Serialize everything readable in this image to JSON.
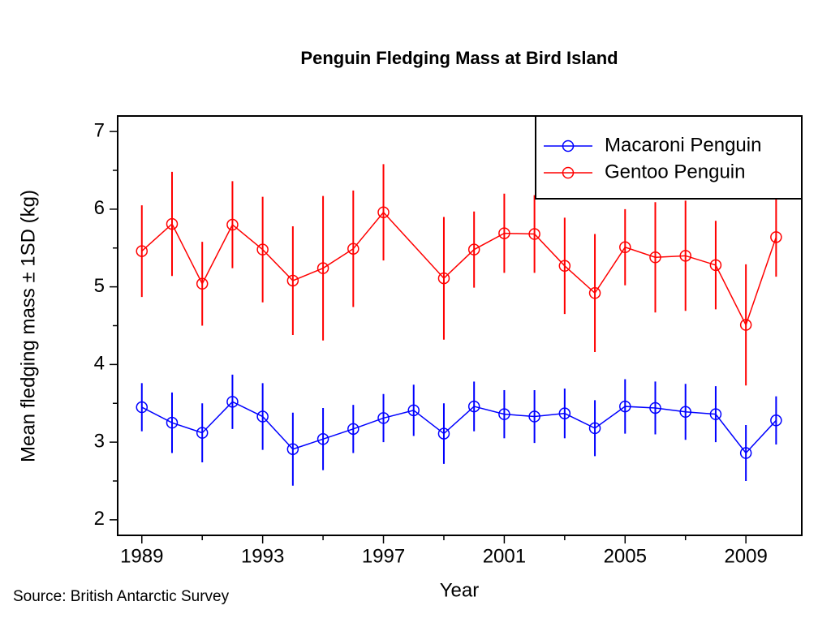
{
  "chart_data": {
    "type": "errorbar-line",
    "title": "Penguin Fledging Mass at Bird Island",
    "x_label": "Year",
    "y_label": "Mean fledging mass ± 1SD (kg)",
    "source": "Source: British Antarctic Survey",
    "xlim": [
      1988.2,
      2010.85
    ],
    "ylim": [
      1.8,
      7.2
    ],
    "xticks": [
      1989,
      1993,
      1997,
      2001,
      2005,
      2009
    ],
    "xminor": [
      1991,
      1995,
      1999,
      2003,
      2007
    ],
    "yticks": [
      2,
      3,
      4,
      5,
      6,
      7
    ],
    "yminor": [
      2.5,
      3.5,
      4.5,
      5.5,
      6.5
    ],
    "legend": "top-right",
    "series": [
      {
        "name": "Macaroni Penguin",
        "color": "#0000ff",
        "x": [
          1989,
          1990,
          1991,
          1992,
          1993,
          1994,
          1995,
          1996,
          1997,
          1998,
          1999,
          2000,
          2001,
          2002,
          2003,
          2004,
          2005,
          2006,
          2007,
          2008,
          2009,
          2010
        ],
        "values": [
          3.45,
          3.25,
          3.12,
          3.52,
          3.33,
          2.91,
          3.04,
          3.17,
          3.31,
          3.41,
          3.11,
          3.46,
          3.36,
          3.33,
          3.37,
          3.18,
          3.46,
          3.44,
          3.39,
          3.36,
          2.86,
          3.28
        ],
        "errors": [
          0.31,
          0.39,
          0.38,
          0.35,
          0.43,
          0.47,
          0.4,
          0.31,
          0.31,
          0.33,
          0.39,
          0.32,
          0.31,
          0.34,
          0.32,
          0.36,
          0.35,
          0.34,
          0.36,
          0.36,
          0.36,
          0.31
        ]
      },
      {
        "name": "Gentoo Penguin",
        "color": "#ff0000",
        "x": [
          1989,
          1990,
          1991,
          1992,
          1993,
          1994,
          1995,
          1996,
          1997,
          1999,
          2000,
          2001,
          2002,
          2003,
          2004,
          2005,
          2006,
          2007,
          2008,
          2009,
          2010
        ],
        "values": [
          5.46,
          5.81,
          5.04,
          5.8,
          5.48,
          5.08,
          5.24,
          5.49,
          5.96,
          5.11,
          5.48,
          5.69,
          5.68,
          5.27,
          4.92,
          5.51,
          5.38,
          5.4,
          5.28,
          4.51,
          5.64
        ],
        "errors": [
          0.59,
          0.67,
          0.54,
          0.56,
          0.68,
          0.7,
          0.93,
          0.75,
          0.62,
          0.79,
          0.49,
          0.51,
          0.5,
          0.62,
          0.76,
          0.49,
          0.71,
          0.71,
          0.57,
          0.78,
          0.51
        ]
      }
    ]
  }
}
